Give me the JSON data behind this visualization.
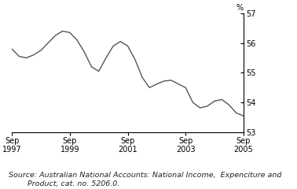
{
  "ylabel": "%",
  "source_text": "Source: Australian National Accounts: National Income,  Expenciture and\n        Product, cat. no. 5206.0.",
  "line_color": "#555555",
  "background_color": "#ffffff",
  "ylim": [
    53,
    57
  ],
  "yticks": [
    53,
    54,
    55,
    56,
    57
  ],
  "xtick_labels": [
    "Sep\n1997",
    "Sep\n1999",
    "Sep\n2001",
    "Sep\n2003",
    "Sep\n2005"
  ],
  "xtick_positions": [
    0,
    8,
    16,
    24,
    32
  ],
  "data_x": [
    0,
    1,
    2,
    3,
    4,
    5,
    6,
    7,
    8,
    9,
    10,
    11,
    12,
    13,
    14,
    15,
    16,
    17,
    18,
    19,
    20,
    21,
    22,
    23,
    24,
    25,
    26,
    27,
    28,
    29,
    30,
    31,
    32
  ],
  "data_y": [
    55.8,
    55.55,
    55.5,
    55.6,
    55.75,
    56.0,
    56.25,
    56.4,
    56.35,
    56.1,
    55.7,
    55.2,
    55.05,
    55.5,
    55.9,
    56.05,
    55.9,
    55.45,
    54.85,
    54.5,
    54.62,
    54.72,
    54.75,
    54.62,
    54.5,
    54.0,
    53.82,
    53.88,
    54.05,
    54.1,
    53.92,
    53.65,
    53.55
  ],
  "linewidth": 1.0,
  "tick_fontsize": 7.0,
  "source_fontsize": 6.8
}
